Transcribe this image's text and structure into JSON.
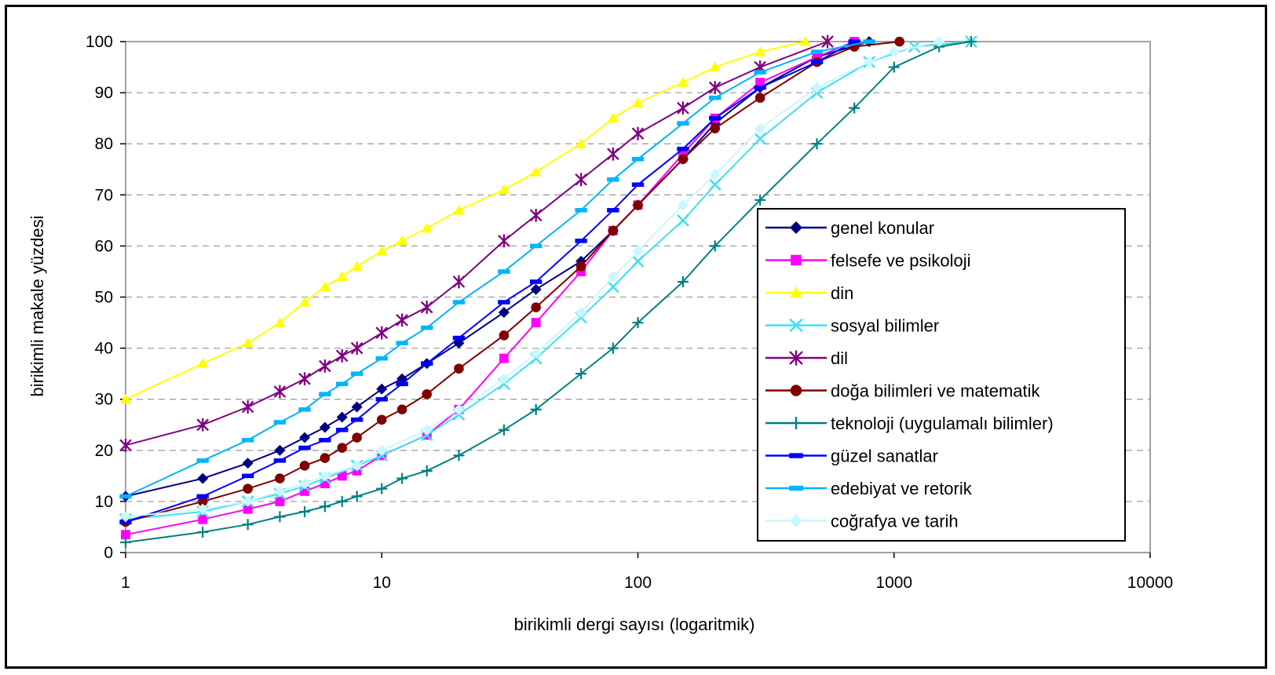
{
  "chart_data": {
    "type": "line",
    "title": "",
    "xlabel": "birikimli dergi sayısı (logaritmik)",
    "ylabel": "birikimli makale yüzdesi",
    "x_scale": "log",
    "xlim": [
      1,
      10000
    ],
    "ylim": [
      0,
      100
    ],
    "x_ticks": [
      "1",
      "10",
      "100",
      "1000",
      "10000"
    ],
    "y_ticks": [
      "0",
      "10",
      "20",
      "30",
      "40",
      "50",
      "60",
      "70",
      "80",
      "90",
      "100"
    ],
    "grid": "horizontal dashed",
    "legend_position": "right",
    "series": [
      {
        "name": "genel konular",
        "color": "#000080",
        "marker": "diamond",
        "points": [
          [
            1,
            11
          ],
          [
            2,
            14.5
          ],
          [
            3,
            17.5
          ],
          [
            4,
            20
          ],
          [
            5,
            22.5
          ],
          [
            6,
            24.5
          ],
          [
            7,
            26.5
          ],
          [
            8,
            28.5
          ],
          [
            10,
            32
          ],
          [
            12,
            34
          ],
          [
            15,
            37
          ],
          [
            20,
            41
          ],
          [
            30,
            47
          ],
          [
            40,
            51.5
          ],
          [
            60,
            57
          ],
          [
            80,
            63
          ],
          [
            100,
            68
          ],
          [
            150,
            77
          ],
          [
            200,
            84
          ],
          [
            300,
            91
          ],
          [
            500,
            97
          ],
          [
            800,
            100
          ]
        ]
      },
      {
        "name": "felsefe ve psikoloji",
        "color": "#ff00ff",
        "marker": "square",
        "points": [
          [
            1,
            3.5
          ],
          [
            2,
            6.5
          ],
          [
            3,
            8.5
          ],
          [
            4,
            10
          ],
          [
            5,
            12
          ],
          [
            6,
            13.5
          ],
          [
            7,
            15
          ],
          [
            8,
            16
          ],
          [
            10,
            19
          ],
          [
            15,
            23
          ],
          [
            20,
            28
          ],
          [
            30,
            38
          ],
          [
            40,
            45
          ],
          [
            60,
            55
          ],
          [
            80,
            63
          ],
          [
            100,
            68
          ],
          [
            150,
            78
          ],
          [
            200,
            85
          ],
          [
            300,
            92
          ],
          [
            500,
            97
          ],
          [
            700,
            100
          ]
        ]
      },
      {
        "name": "din",
        "color": "#ffff00",
        "marker": "triangle",
        "points": [
          [
            1,
            30
          ],
          [
            2,
            37
          ],
          [
            3,
            41
          ],
          [
            4,
            45
          ],
          [
            5,
            49
          ],
          [
            6,
            52
          ],
          [
            7,
            54
          ],
          [
            8,
            56
          ],
          [
            10,
            59
          ],
          [
            12,
            61
          ],
          [
            15,
            63.5
          ],
          [
            20,
            67
          ],
          [
            30,
            71
          ],
          [
            40,
            74.5
          ],
          [
            60,
            80
          ],
          [
            80,
            85
          ],
          [
            100,
            88
          ],
          [
            150,
            92
          ],
          [
            200,
            95
          ],
          [
            300,
            98
          ],
          [
            450,
            100
          ]
        ]
      },
      {
        "name": "sosyal bilimler",
        "color": "#40e0f0",
        "marker": "x",
        "points": [
          [
            1,
            6.5
          ],
          [
            2,
            8
          ],
          [
            3,
            10
          ],
          [
            4,
            11.5
          ],
          [
            5,
            13
          ],
          [
            6,
            14.5
          ],
          [
            8,
            17
          ],
          [
            10,
            19
          ],
          [
            15,
            23
          ],
          [
            20,
            27
          ],
          [
            30,
            33
          ],
          [
            40,
            38
          ],
          [
            60,
            46
          ],
          [
            80,
            52
          ],
          [
            100,
            57
          ],
          [
            150,
            65
          ],
          [
            200,
            72
          ],
          [
            300,
            81
          ],
          [
            500,
            90
          ],
          [
            800,
            96
          ],
          [
            1200,
            99
          ],
          [
            2000,
            100
          ]
        ]
      },
      {
        "name": "dil",
        "color": "#800080",
        "marker": "star",
        "points": [
          [
            1,
            21
          ],
          [
            2,
            25
          ],
          [
            3,
            28.5
          ],
          [
            4,
            31.5
          ],
          [
            5,
            34
          ],
          [
            6,
            36.5
          ],
          [
            7,
            38.5
          ],
          [
            8,
            40
          ],
          [
            10,
            43
          ],
          [
            12,
            45.5
          ],
          [
            15,
            48
          ],
          [
            20,
            53
          ],
          [
            30,
            61
          ],
          [
            40,
            66
          ],
          [
            60,
            73
          ],
          [
            80,
            78
          ],
          [
            100,
            82
          ],
          [
            150,
            87
          ],
          [
            200,
            91
          ],
          [
            300,
            95
          ],
          [
            550,
            100
          ]
        ]
      },
      {
        "name": "doğa bilimleri ve matematik",
        "color": "#800000",
        "marker": "circle",
        "points": [
          [
            1,
            6
          ],
          [
            2,
            10
          ],
          [
            3,
            12.5
          ],
          [
            4,
            14.5
          ],
          [
            5,
            17
          ],
          [
            6,
            18.5
          ],
          [
            7,
            20.5
          ],
          [
            8,
            22.5
          ],
          [
            10,
            26
          ],
          [
            12,
            28
          ],
          [
            15,
            31
          ],
          [
            20,
            36
          ],
          [
            30,
            42.5
          ],
          [
            40,
            48
          ],
          [
            60,
            56
          ],
          [
            80,
            63
          ],
          [
            100,
            68
          ],
          [
            150,
            77
          ],
          [
            200,
            83
          ],
          [
            300,
            89
          ],
          [
            500,
            96
          ],
          [
            700,
            99
          ],
          [
            1050,
            100
          ]
        ]
      },
      {
        "name": "teknoloji (uygulamalı bilimler)",
        "color": "#008080",
        "marker": "plus",
        "points": [
          [
            1,
            2
          ],
          [
            2,
            4
          ],
          [
            3,
            5.5
          ],
          [
            4,
            7
          ],
          [
            5,
            8
          ],
          [
            6,
            9
          ],
          [
            7,
            10
          ],
          [
            8,
            11
          ],
          [
            10,
            12.5
          ],
          [
            12,
            14.5
          ],
          [
            15,
            16
          ],
          [
            20,
            19
          ],
          [
            30,
            24
          ],
          [
            40,
            28
          ],
          [
            60,
            35
          ],
          [
            80,
            40
          ],
          [
            100,
            45
          ],
          [
            150,
            53
          ],
          [
            200,
            60
          ],
          [
            300,
            69
          ],
          [
            500,
            80
          ],
          [
            700,
            87
          ],
          [
            1000,
            95
          ],
          [
            1500,
            99
          ],
          [
            2000,
            100
          ]
        ]
      },
      {
        "name": "güzel sanatlar",
        "color": "#0000ff",
        "marker": "dash",
        "points": [
          [
            1,
            6
          ],
          [
            2,
            11
          ],
          [
            3,
            15
          ],
          [
            4,
            18
          ],
          [
            5,
            20.5
          ],
          [
            6,
            22
          ],
          [
            7,
            24
          ],
          [
            8,
            26
          ],
          [
            10,
            30
          ],
          [
            12,
            33
          ],
          [
            15,
            37
          ],
          [
            20,
            42
          ],
          [
            30,
            49
          ],
          [
            40,
            53
          ],
          [
            60,
            61
          ],
          [
            80,
            67
          ],
          [
            100,
            72
          ],
          [
            150,
            79
          ],
          [
            200,
            85
          ],
          [
            300,
            91
          ],
          [
            500,
            96
          ],
          [
            700,
            100
          ]
        ]
      },
      {
        "name": "edebiyat ve retorik",
        "color": "#00b4ff",
        "marker": "dash",
        "points": [
          [
            1,
            11
          ],
          [
            2,
            18
          ],
          [
            3,
            22
          ],
          [
            4,
            25.5
          ],
          [
            5,
            28
          ],
          [
            6,
            31
          ],
          [
            7,
            33
          ],
          [
            8,
            35
          ],
          [
            10,
            38
          ],
          [
            12,
            41
          ],
          [
            15,
            44
          ],
          [
            20,
            49
          ],
          [
            30,
            55
          ],
          [
            40,
            60
          ],
          [
            60,
            67
          ],
          [
            80,
            73
          ],
          [
            100,
            77
          ],
          [
            150,
            84
          ],
          [
            200,
            89
          ],
          [
            300,
            94
          ],
          [
            500,
            98
          ],
          [
            800,
            100
          ]
        ]
      },
      {
        "name": "coğrafya ve tarih",
        "color": "#c8f8ff",
        "marker": "diamond",
        "points": [
          [
            1,
            7
          ],
          [
            2,
            8.5
          ],
          [
            3,
            10
          ],
          [
            4,
            12
          ],
          [
            5,
            13.5
          ],
          [
            6,
            15
          ],
          [
            8,
            17
          ],
          [
            10,
            20
          ],
          [
            15,
            24
          ],
          [
            20,
            28
          ],
          [
            30,
            34
          ],
          [
            40,
            39
          ],
          [
            60,
            47
          ],
          [
            80,
            54
          ],
          [
            100,
            59
          ],
          [
            150,
            68
          ],
          [
            200,
            74
          ],
          [
            300,
            83
          ],
          [
            500,
            91
          ],
          [
            800,
            96
          ],
          [
            1000,
            98
          ],
          [
            1500,
            100
          ]
        ]
      }
    ]
  }
}
